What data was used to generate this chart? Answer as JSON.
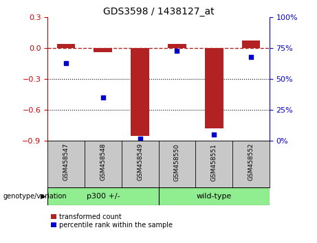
{
  "title": "GDS3598 / 1438127_at",
  "samples": [
    "GSM458547",
    "GSM458548",
    "GSM458549",
    "GSM458550",
    "GSM458551",
    "GSM458552"
  ],
  "red_values": [
    0.04,
    -0.04,
    -0.85,
    0.04,
    -0.78,
    0.07
  ],
  "blue_values": [
    63,
    35,
    2,
    73,
    5,
    68
  ],
  "ylim_left": [
    -0.9,
    0.3
  ],
  "ylim_right": [
    0,
    100
  ],
  "yticks_left": [
    0.3,
    0,
    -0.3,
    -0.6,
    -0.9
  ],
  "yticks_right": [
    100,
    75,
    50,
    25,
    0
  ],
  "hline_y": 0,
  "dotted_lines": [
    -0.3,
    -0.6
  ],
  "group1_label": "p300 +/-",
  "group2_label": "wild-type",
  "bar_color": "#b22222",
  "dot_color": "#0000cc",
  "group_color": "#90ee90",
  "sample_bg": "#c8c8c8",
  "xlabel_group": "genotype/variation",
  "legend_red": "transformed count",
  "legend_blue": "percentile rank within the sample",
  "background_color": "#ffffff",
  "left_axis_color": "#cc0000",
  "right_axis_color": "#0000cc"
}
